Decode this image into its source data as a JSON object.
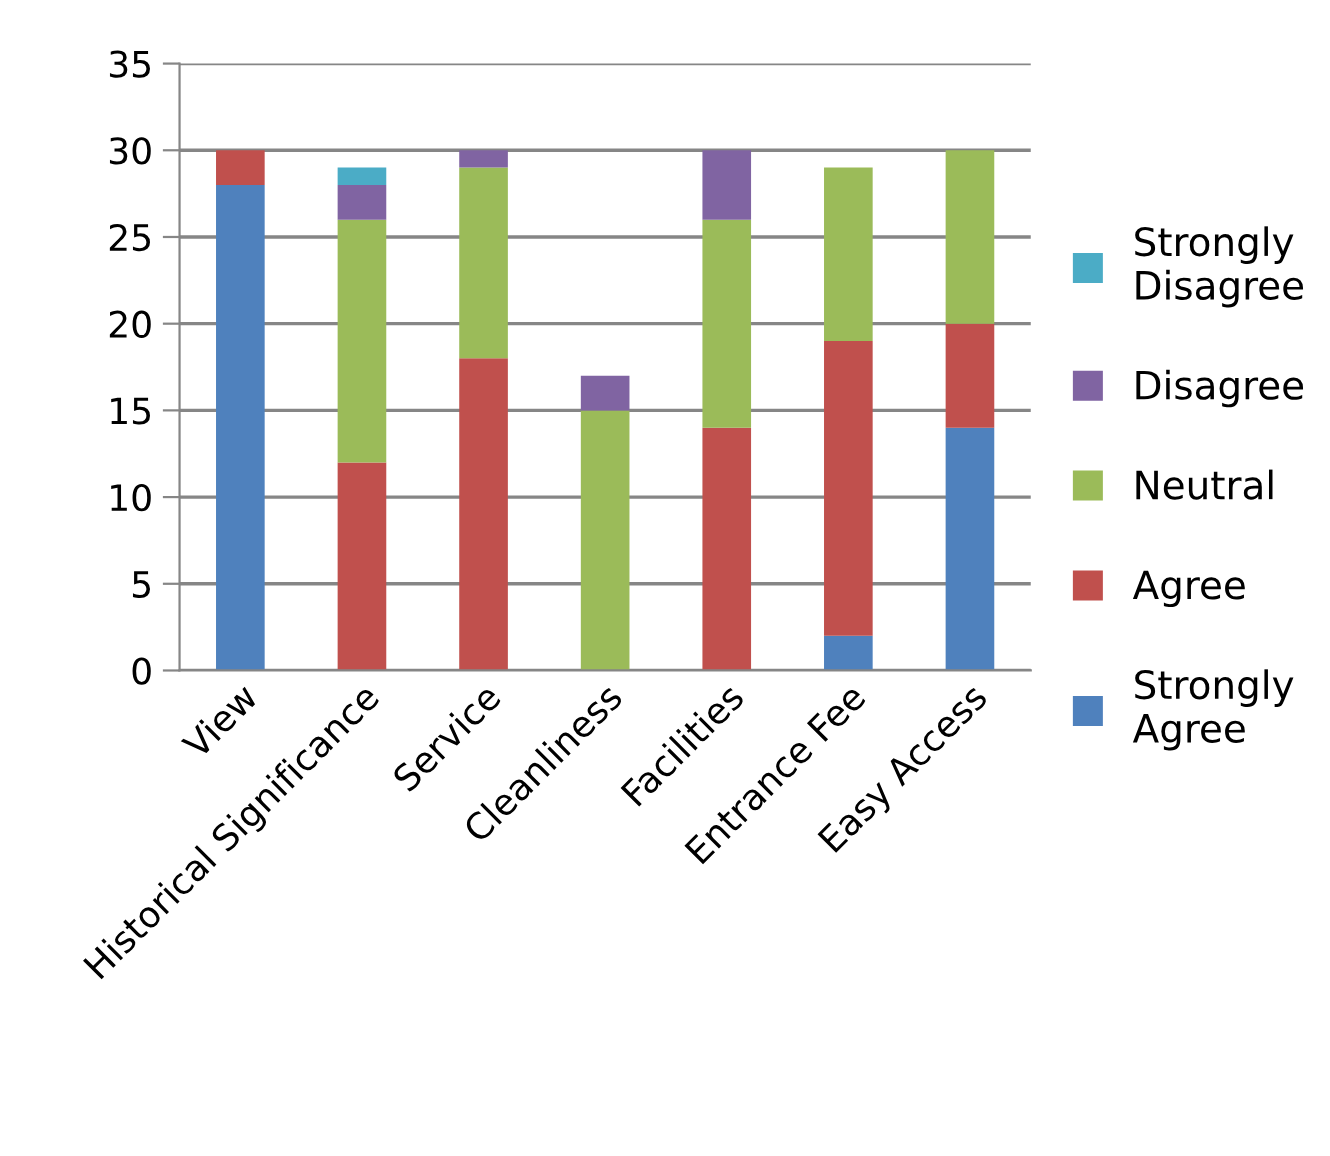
{
  "chart_data": {
    "type": "bar",
    "stacked": true,
    "categories": [
      "View",
      "Historical Significance",
      "Service",
      "Cleanliness",
      "Facilities",
      "Entrance Fee",
      "Easy Access"
    ],
    "series": [
      {
        "name": "Strongly Agree",
        "color": "#4f81bd",
        "values": [
          28,
          0,
          0,
          0,
          0,
          2,
          14
        ]
      },
      {
        "name": "Agree",
        "color": "#c0504d",
        "values": [
          2,
          12,
          18,
          0,
          14,
          17,
          6
        ]
      },
      {
        "name": "Neutral",
        "color": "#9bbb59",
        "values": [
          0,
          14,
          11,
          15,
          12,
          10,
          10
        ]
      },
      {
        "name": "Disagree",
        "color": "#8064a2",
        "values": [
          0,
          2,
          1,
          2,
          4,
          0,
          0
        ]
      },
      {
        "name": "Strongly Disagree",
        "color": "#4bacc6",
        "values": [
          0,
          1,
          0,
          0,
          0,
          0,
          0
        ]
      }
    ],
    "ylim": [
      0,
      35
    ],
    "yticks": [
      0,
      5,
      10,
      15,
      20,
      25,
      30,
      35
    ],
    "grid": "y",
    "legend": "right"
  }
}
